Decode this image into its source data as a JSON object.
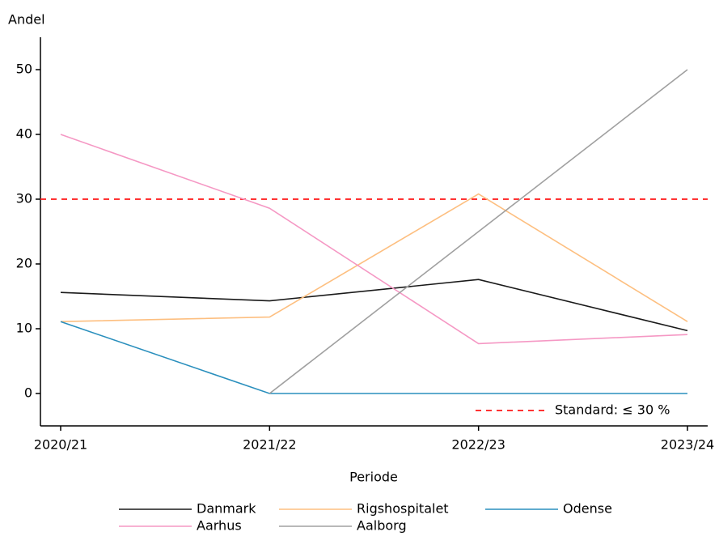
{
  "chart_data": {
    "type": "line",
    "y_label": "Andel",
    "x_label": "Periode",
    "categories": [
      "2020/21",
      "2021/22",
      "2022/23",
      "2023/24"
    ],
    "series": [
      {
        "name": "Danmark",
        "color": "#1a1a1a",
        "values": [
          15.6,
          14.3,
          17.6,
          9.7
        ]
      },
      {
        "name": "Rigshospitalet",
        "color": "#fdbf80",
        "values": [
          11.1,
          11.8,
          30.8,
          11.1
        ]
      },
      {
        "name": "Odense",
        "color": "#2a8fbd",
        "values": [
          11.1,
          0,
          0,
          0
        ]
      },
      {
        "name": "Aarhus",
        "color": "#f598c4",
        "values": [
          40,
          28.6,
          7.7,
          9.1
        ]
      },
      {
        "name": "Aalborg",
        "color": "#a0a0a0",
        "values": [
          null,
          0,
          25,
          50
        ]
      }
    ],
    "reference": {
      "value": 30,
      "label": "Standard: ≤ 30 %",
      "color": "#ff3333"
    },
    "ylim": [
      -5,
      55
    ],
    "yticks": [
      0,
      10,
      20,
      30,
      40,
      50
    ],
    "grid": false,
    "legend": "bottom"
  }
}
